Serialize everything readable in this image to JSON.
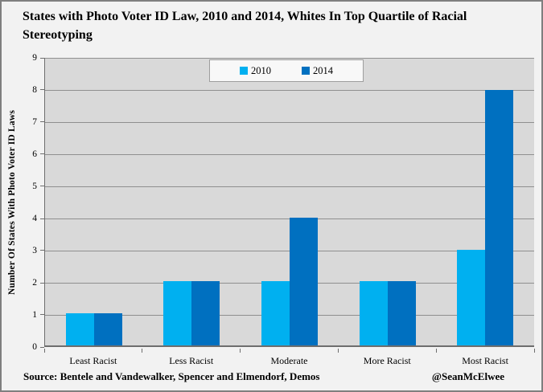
{
  "title": "States with Photo Voter ID Law, 2010 and 2014, Whites In Top Quartile of Racial Stereotyping",
  "footer": {
    "source": "Source: Bentele and Vandewalker, Spencer and Elmendorf, Demos",
    "credit": "@SeanMcElwee"
  },
  "colors": {
    "series_2010": "#00B0F0",
    "series_2014": "#0070C0",
    "plot_background": "#D9D9D9",
    "page_background": "#F2F2F2",
    "gridline": "#8F8F8F"
  },
  "chart_data": {
    "type": "bar",
    "categories": [
      "Least Racist",
      "Less Racist",
      "Moderate",
      "More Racist",
      "Most Racist"
    ],
    "series": [
      {
        "name": "2010",
        "color": "#00B0F0",
        "values": [
          1,
          2,
          2,
          2,
          3
        ]
      },
      {
        "name": "2014",
        "color": "#0070C0",
        "values": [
          1,
          2,
          4,
          2,
          8
        ]
      }
    ],
    "title": "States with Photo Voter ID Law, 2010 and 2014, Whites In Top Quartile of Racial Stereotyping",
    "xlabel": "",
    "ylabel": "Number Of States With Photo Voter ID Laws",
    "ylim": [
      0,
      9
    ],
    "yticks": [
      0,
      1,
      2,
      3,
      4,
      5,
      6,
      7,
      8,
      9
    ],
    "grid": true,
    "legend_position": "top-center",
    "legend_entries": [
      "2010",
      "2014"
    ]
  }
}
